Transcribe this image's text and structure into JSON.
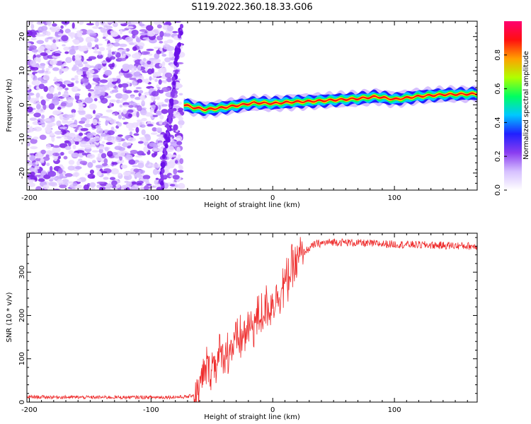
{
  "title": "S119.2022.360.18.33.G06",
  "chart_data": [
    {
      "type": "heatmap",
      "xlabel": "Height of straight line (km)",
      "ylabel": "Frequency (Hz)",
      "xlim": [
        -202,
        168
      ],
      "ylim": [
        -25,
        24.5
      ],
      "x_ticks": [
        -200,
        -100,
        0,
        100
      ],
      "y_ticks": [
        -20,
        -10,
        0,
        10,
        20
      ],
      "colorbar": {
        "label": "Normalized spectral amplitude",
        "range": [
          0.0,
          1.0
        ],
        "ticks": [
          "0.0",
          "0.2",
          "0.4",
          "0.6",
          "0.8"
        ],
        "colormap": [
          "#ffffff",
          "#d6c0ff",
          "#8a3cf0",
          "#2020ff",
          "#00c8ff",
          "#00ff60",
          "#b0ff00",
          "#ffa000",
          "#ff1010",
          "#ff0070"
        ]
      },
      "noise_region_x": [
        -202,
        -75
      ],
      "signal_trace": {
        "x": [
          -73,
          -65,
          -55,
          -45,
          -35,
          -25,
          -15,
          0,
          15,
          30,
          50,
          70,
          85,
          100,
          120,
          140,
          168
        ],
        "freq": [
          0.0,
          -0.8,
          -1.4,
          -1.0,
          -0.5,
          0.0,
          0.6,
          0.4,
          0.8,
          1.0,
          1.4,
          1.8,
          2.4,
          1.6,
          2.5,
          3.0,
          3.2
        ]
      },
      "grid": false
    },
    {
      "type": "line",
      "xlabel": "Height of straight line (km)",
      "ylabel": "SNR (10 * v/v)",
      "xlim": [
        -202,
        168
      ],
      "ylim": [
        0,
        390
      ],
      "x_ticks": [
        -200,
        -100,
        0,
        100
      ],
      "y_ticks": [
        0,
        100,
        200,
        300
      ],
      "series_color": "#ee2a2a",
      "trend": {
        "x": [
          -202,
          -150,
          -100,
          -70,
          -62,
          -55,
          -45,
          -35,
          -25,
          -15,
          -5,
          5,
          15,
          25,
          35,
          50,
          80,
          120,
          168
        ],
        "y": [
          12,
          11,
          11,
          12,
          20,
          75,
          100,
          125,
          150,
          185,
          215,
          250,
          300,
          345,
          365,
          370,
          366,
          363,
          360
        ]
      },
      "grid": false
    }
  ]
}
